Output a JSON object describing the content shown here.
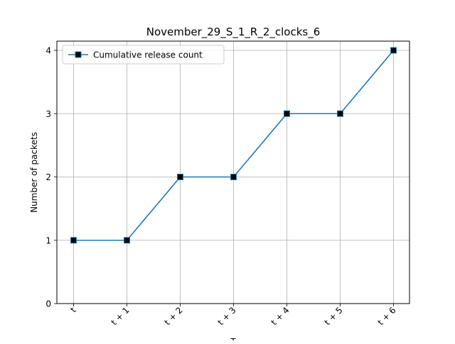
{
  "chart_data": {
    "type": "line",
    "title": "November_29_S_1_R_2_clocks_6",
    "xlabel": "T",
    "ylabel": "Number of packets",
    "categories": [
      "t",
      "t + 1",
      "t + 2",
      "t + 3",
      "t + 4",
      "t + 5",
      "t + 6"
    ],
    "series": [
      {
        "name": "Cumulative release count",
        "values": [
          1,
          1,
          2,
          2,
          3,
          3,
          4
        ]
      }
    ],
    "ylim": [
      0,
      4
    ],
    "yticks": [
      "0",
      "1",
      "2",
      "3",
      "4"
    ],
    "grid": true,
    "legend": "top-left",
    "colors": {
      "line": "#1f77b4",
      "marker_fill": "#000000",
      "grid": "#b0b0b0"
    }
  }
}
